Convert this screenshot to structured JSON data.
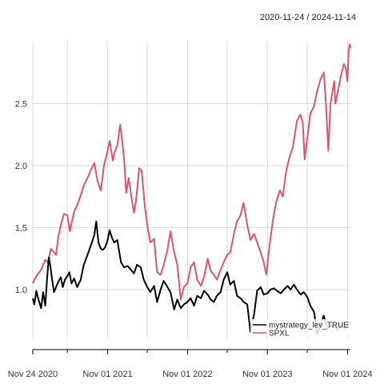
{
  "date_range_label": "2020-11-24 / 2024-11-14",
  "chart_data": {
    "type": "line",
    "title": "",
    "xlabel": "",
    "ylabel": "",
    "x_range": [
      "2020-11-24",
      "2024-11-14"
    ],
    "ylim": [
      0.6,
      3.0
    ],
    "y_ticks": [
      1.0,
      1.5,
      2.0,
      2.5
    ],
    "y_tick_labels": [
      "1.0",
      "1.5",
      "2.0",
      "2.5"
    ],
    "x_ticks": [
      "2020-11-24",
      "2021-11-01",
      "2022-11-01",
      "2023-11-01",
      "2024-11-01"
    ],
    "x_tick_labels": [
      "Nov 24 2020",
      "Nov 01 2021",
      "Nov 01 2022",
      "Nov 01 2023",
      "Nov 01 2024"
    ],
    "x_minor_ticks": [
      "2021-05-01",
      "2022-05-01",
      "2023-05-01",
      "2024-05-01"
    ],
    "grid": true,
    "legend_position": "bottom-right",
    "series": [
      {
        "name": "mystrategy_lev_TRUE",
        "color": "#000000",
        "points": [
          [
            "2020-11-24",
            0.93
          ],
          [
            "2020-12-01",
            0.88
          ],
          [
            "2020-12-10",
            0.99
          ],
          [
            "2020-12-20",
            0.92
          ],
          [
            "2021-01-01",
            0.85
          ],
          [
            "2021-01-10",
            0.98
          ],
          [
            "2021-01-20",
            0.87
          ],
          [
            "2021-01-28",
            1.08
          ],
          [
            "2021-02-05",
            1.26
          ],
          [
            "2021-02-12",
            1.19
          ],
          [
            "2021-02-22",
            1.06
          ],
          [
            "2021-03-01",
            0.98
          ],
          [
            "2021-03-10",
            1.02
          ],
          [
            "2021-03-20",
            1.06
          ],
          [
            "2021-04-01",
            1.1
          ],
          [
            "2021-04-10",
            1.02
          ],
          [
            "2021-04-20",
            1.08
          ],
          [
            "2021-05-01",
            1.11
          ],
          [
            "2021-05-10",
            1.14
          ],
          [
            "2021-05-20",
            1.05
          ],
          [
            "2021-06-01",
            1.09
          ],
          [
            "2021-06-15",
            1.02
          ],
          [
            "2021-07-01",
            1.08
          ],
          [
            "2021-07-15",
            1.2
          ],
          [
            "2021-08-01",
            1.28
          ],
          [
            "2021-08-15",
            1.35
          ],
          [
            "2021-09-01",
            1.44
          ],
          [
            "2021-09-10",
            1.55
          ],
          [
            "2021-09-20",
            1.38
          ],
          [
            "2021-10-01",
            1.33
          ],
          [
            "2021-10-10",
            1.32
          ],
          [
            "2021-10-20",
            1.34
          ],
          [
            "2021-11-01",
            1.4
          ],
          [
            "2021-11-10",
            1.48
          ],
          [
            "2021-11-20",
            1.42
          ],
          [
            "2021-12-01",
            1.38
          ],
          [
            "2021-12-15",
            1.4
          ],
          [
            "2022-01-01",
            1.22
          ],
          [
            "2022-01-15",
            1.18
          ],
          [
            "2022-02-01",
            1.19
          ],
          [
            "2022-02-15",
            1.16
          ],
          [
            "2022-03-01",
            1.13
          ],
          [
            "2022-03-15",
            1.2
          ],
          [
            "2022-04-01",
            1.18
          ],
          [
            "2022-04-15",
            1.08
          ],
          [
            "2022-05-01",
            1.02
          ],
          [
            "2022-05-15",
            0.98
          ],
          [
            "2022-06-01",
            1.03
          ],
          [
            "2022-06-15",
            0.9
          ],
          [
            "2022-07-01",
            1.0
          ],
          [
            "2022-07-15",
            1.07
          ],
          [
            "2022-08-01",
            1.02
          ],
          [
            "2022-08-15",
            0.98
          ],
          [
            "2022-09-01",
            0.84
          ],
          [
            "2022-09-15",
            0.92
          ],
          [
            "2022-10-01",
            0.85
          ],
          [
            "2022-10-15",
            0.88
          ],
          [
            "2022-11-01",
            0.9
          ],
          [
            "2022-11-15",
            0.93
          ],
          [
            "2022-12-01",
            0.87
          ],
          [
            "2022-12-15",
            0.95
          ],
          [
            "2023-01-01",
            0.93
          ],
          [
            "2023-01-15",
            0.99
          ],
          [
            "2023-02-01",
            0.96
          ],
          [
            "2023-02-15",
            0.92
          ],
          [
            "2023-03-01",
            0.9
          ],
          [
            "2023-03-15",
            0.95
          ],
          [
            "2023-04-01",
            0.98
          ],
          [
            "2023-04-15",
            1.08
          ],
          [
            "2023-05-01",
            1.14
          ],
          [
            "2023-05-15",
            1.04
          ],
          [
            "2023-06-01",
            1.07
          ],
          [
            "2023-06-15",
            0.95
          ],
          [
            "2023-07-01",
            0.93
          ],
          [
            "2023-07-15",
            0.9
          ],
          [
            "2023-08-01",
            0.88
          ],
          [
            "2023-08-15",
            0.66
          ],
          [
            "2023-09-01",
            0.8
          ],
          [
            "2023-09-15",
            0.99
          ],
          [
            "2023-10-01",
            1.02
          ],
          [
            "2023-10-15",
            0.96
          ],
          [
            "2023-11-01",
            0.97
          ],
          [
            "2023-11-15",
            1.0
          ],
          [
            "2023-12-01",
            1.01
          ],
          [
            "2023-12-15",
            0.99
          ],
          [
            "2024-01-01",
            0.97
          ],
          [
            "2024-01-15",
            1.0
          ],
          [
            "2024-02-01",
            1.03
          ],
          [
            "2024-02-15",
            1.0
          ],
          [
            "2024-03-01",
            1.04
          ],
          [
            "2024-03-15",
            1.0
          ],
          [
            "2024-04-01",
            0.96
          ],
          [
            "2024-04-15",
            0.98
          ],
          [
            "2024-05-01",
            0.94
          ],
          [
            "2024-05-15",
            0.87
          ],
          [
            "2024-06-01",
            0.82
          ],
          [
            "2024-06-15",
            0.64
          ],
          [
            "2024-07-01",
            0.72
          ],
          [
            "2024-07-15",
            0.79
          ],
          [
            "2024-08-01",
            0.69
          ],
          [
            "2024-08-15",
            0.71
          ],
          [
            "2024-09-01",
            0.7
          ],
          [
            "2024-09-15",
            0.68
          ],
          [
            "2024-10-01",
            0.71
          ],
          [
            "2024-10-15",
            0.69
          ],
          [
            "2024-11-01",
            0.71
          ],
          [
            "2024-11-14",
            0.74
          ]
        ]
      },
      {
        "name": "SPXL",
        "color": "#DF536B",
        "points": [
          [
            "2020-11-24",
            1.05
          ],
          [
            "2020-12-01",
            1.08
          ],
          [
            "2020-12-15",
            1.12
          ],
          [
            "2021-01-01",
            1.16
          ],
          [
            "2021-01-10",
            1.2
          ],
          [
            "2021-01-20",
            1.24
          ],
          [
            "2021-02-01",
            1.22
          ],
          [
            "2021-02-15",
            1.33
          ],
          [
            "2021-03-01",
            1.3
          ],
          [
            "2021-03-10",
            1.28
          ],
          [
            "2021-03-20",
            1.42
          ],
          [
            "2021-04-01",
            1.52
          ],
          [
            "2021-04-15",
            1.61
          ],
          [
            "2021-05-01",
            1.6
          ],
          [
            "2021-05-12",
            1.47
          ],
          [
            "2021-06-01",
            1.63
          ],
          [
            "2021-06-15",
            1.68
          ],
          [
            "2021-07-01",
            1.76
          ],
          [
            "2021-07-15",
            1.84
          ],
          [
            "2021-08-01",
            1.9
          ],
          [
            "2021-08-15",
            1.96
          ],
          [
            "2021-09-01",
            2.02
          ],
          [
            "2021-09-15",
            1.88
          ],
          [
            "2021-10-01",
            1.8
          ],
          [
            "2021-10-15",
            2.0
          ],
          [
            "2021-11-01",
            2.12
          ],
          [
            "2021-11-10",
            2.2
          ],
          [
            "2021-11-25",
            2.04
          ],
          [
            "2021-12-01",
            2.1
          ],
          [
            "2021-12-15",
            2.16
          ],
          [
            "2021-12-28",
            2.33
          ],
          [
            "2022-01-05",
            2.22
          ],
          [
            "2022-01-15",
            2.05
          ],
          [
            "2022-01-25",
            1.78
          ],
          [
            "2022-02-05",
            1.9
          ],
          [
            "2022-02-20",
            1.72
          ],
          [
            "2022-03-01",
            1.62
          ],
          [
            "2022-03-10",
            1.71
          ],
          [
            "2022-03-25",
            1.98
          ],
          [
            "2022-04-05",
            1.96
          ],
          [
            "2022-04-20",
            1.67
          ],
          [
            "2022-05-01",
            1.52
          ],
          [
            "2022-05-15",
            1.38
          ],
          [
            "2022-06-01",
            1.41
          ],
          [
            "2022-06-15",
            1.14
          ],
          [
            "2022-07-01",
            1.12
          ],
          [
            "2022-07-15",
            1.2
          ],
          [
            "2022-08-01",
            1.32
          ],
          [
            "2022-08-15",
            1.47
          ],
          [
            "2022-09-01",
            1.3
          ],
          [
            "2022-09-15",
            1.2
          ],
          [
            "2022-10-01",
            0.92
          ],
          [
            "2022-10-15",
            1.02
          ],
          [
            "2022-11-01",
            1.05
          ],
          [
            "2022-11-15",
            1.18
          ],
          [
            "2022-12-01",
            1.22
          ],
          [
            "2022-12-15",
            1.08
          ],
          [
            "2023-01-01",
            1.03
          ],
          [
            "2023-01-15",
            1.1
          ],
          [
            "2023-02-01",
            1.25
          ],
          [
            "2023-02-15",
            1.15
          ],
          [
            "2023-03-01",
            1.12
          ],
          [
            "2023-03-15",
            1.08
          ],
          [
            "2023-04-01",
            1.16
          ],
          [
            "2023-04-15",
            1.22
          ],
          [
            "2023-05-01",
            1.28
          ],
          [
            "2023-05-15",
            1.3
          ],
          [
            "2023-06-01",
            1.45
          ],
          [
            "2023-06-15",
            1.55
          ],
          [
            "2023-07-01",
            1.6
          ],
          [
            "2023-07-15",
            1.7
          ],
          [
            "2023-08-01",
            1.52
          ],
          [
            "2023-08-15",
            1.4
          ],
          [
            "2023-09-01",
            1.45
          ],
          [
            "2023-09-15",
            1.38
          ],
          [
            "2023-10-01",
            1.3
          ],
          [
            "2023-10-15",
            1.22
          ],
          [
            "2023-10-27",
            1.12
          ],
          [
            "2023-11-10",
            1.35
          ],
          [
            "2023-11-25",
            1.55
          ],
          [
            "2023-12-10",
            1.7
          ],
          [
            "2023-12-28",
            1.8
          ],
          [
            "2024-01-10",
            1.75
          ],
          [
            "2024-01-25",
            1.95
          ],
          [
            "2024-02-10",
            2.07
          ],
          [
            "2024-02-25",
            2.15
          ],
          [
            "2024-03-15",
            2.36
          ],
          [
            "2024-03-30",
            2.41
          ],
          [
            "2024-04-10",
            2.35
          ],
          [
            "2024-04-19",
            2.05
          ],
          [
            "2024-05-01",
            2.22
          ],
          [
            "2024-05-15",
            2.42
          ],
          [
            "2024-06-01",
            2.48
          ],
          [
            "2024-06-15",
            2.6
          ],
          [
            "2024-07-01",
            2.7
          ],
          [
            "2024-07-16",
            2.75
          ],
          [
            "2024-07-25",
            2.5
          ],
          [
            "2024-08-05",
            2.12
          ],
          [
            "2024-08-15",
            2.5
          ],
          [
            "2024-09-01",
            2.68
          ],
          [
            "2024-09-06",
            2.5
          ],
          [
            "2024-09-20",
            2.62
          ],
          [
            "2024-10-01",
            2.72
          ],
          [
            "2024-10-15",
            2.82
          ],
          [
            "2024-10-25",
            2.78
          ],
          [
            "2024-10-31",
            2.68
          ],
          [
            "2024-11-06",
            2.92
          ],
          [
            "2024-11-11",
            2.98
          ],
          [
            "2024-11-14",
            2.95
          ]
        ]
      }
    ]
  }
}
